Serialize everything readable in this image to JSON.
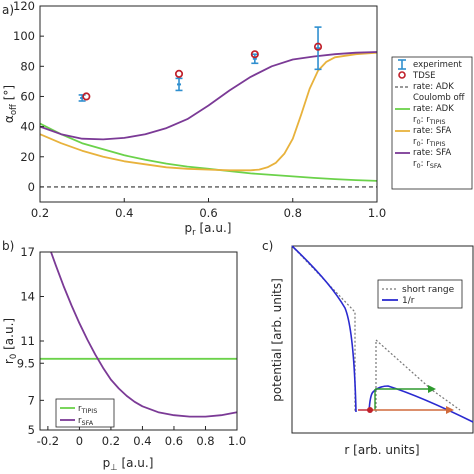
{
  "panel_labels": {
    "a": "a)",
    "b": "b)",
    "c": "c)"
  },
  "colors": {
    "experiment": "#2f8fcf",
    "tdse": "#c0202a",
    "adk": "#6bd24a",
    "sfa": "#e8b23c",
    "rsfa": "#7b3a96",
    "dashed": "#333333",
    "short_range": "#777777",
    "one_over_r": "#2a2ad0",
    "orange_arrow": "#d06a3c",
    "green_arrow": "#2e9a2e"
  },
  "chart_data": [
    {
      "id": "a",
      "type": "line",
      "xlabel": "p",
      "xlabel_sub": "r",
      "xlabel_unit": " [a.u.]",
      "ylabel": "α",
      "ylabel_sub": "off",
      "ylabel_unit": " [°]",
      "xlim": [
        0.2,
        1.0
      ],
      "ylim": [
        -10,
        120
      ],
      "xticks": [
        "0.2",
        "0.4",
        "0.6",
        "0.8",
        "1.0"
      ],
      "xtick_values": [
        0.2,
        0.4,
        0.6,
        0.8,
        1.0
      ],
      "yticks": [
        "0",
        "20",
        "40",
        "60",
        "80",
        "100",
        "120"
      ],
      "ytick_values": [
        0,
        20,
        40,
        60,
        80,
        100,
        120
      ],
      "grid": false,
      "legend_position": "right-outside",
      "legend": [
        {
          "kind": "errorbar",
          "color": "experiment",
          "text": "experiment"
        },
        {
          "kind": "circle",
          "color": "tdse",
          "text": "TDSE"
        },
        {
          "kind": "dashed",
          "color": "dashed",
          "text": "rate: ADK",
          "text2": "Coulomb off"
        },
        {
          "kind": "line",
          "color": "adk",
          "text": "rate: ADK",
          "text2": "r",
          "text2_sub": "0",
          "text2_rest": ": r",
          "text2_sub2": "TIPIS"
        },
        {
          "kind": "line",
          "color": "sfa",
          "text": "rate: SFA",
          "text2": "r",
          "text2_sub": "0",
          "text2_rest": ": r",
          "text2_sub2": "TIPIS"
        },
        {
          "kind": "line",
          "color": "rsfa",
          "text": "rate: SFA",
          "text2": "r",
          "text2_sub": "0",
          "text2_rest": ": r",
          "text2_sub2": "SFA"
        }
      ],
      "experiment": [
        {
          "x": 0.3,
          "y": 59,
          "err": 2
        },
        {
          "x": 0.53,
          "y": 68,
          "err": 4
        },
        {
          "x": 0.71,
          "y": 85,
          "err": 3
        },
        {
          "x": 0.86,
          "y": 92,
          "err": 14
        }
      ],
      "tdse": [
        {
          "x": 0.31,
          "y": 60
        },
        {
          "x": 0.53,
          "y": 75
        },
        {
          "x": 0.71,
          "y": 88
        },
        {
          "x": 0.86,
          "y": 93
        }
      ],
      "series": [
        {
          "name": "rate: ADK Coulomb off",
          "color": "dashed",
          "dash": true,
          "x": [
            0.2,
            1.0
          ],
          "y": [
            0,
            0
          ]
        },
        {
          "name": "rate: ADK r0: rTIPIS",
          "color": "adk",
          "x": [
            0.2,
            0.25,
            0.3,
            0.35,
            0.4,
            0.45,
            0.5,
            0.55,
            0.6,
            0.65,
            0.7,
            0.75,
            0.8,
            0.85,
            0.9,
            0.95,
            1.0
          ],
          "y": [
            42,
            35,
            29,
            25,
            21,
            18,
            15.5,
            13.5,
            12,
            10.5,
            9,
            8,
            7,
            6,
            5.2,
            4.5,
            4
          ]
        },
        {
          "name": "rate: SFA r0: rTIPIS",
          "color": "sfa",
          "x": [
            0.2,
            0.25,
            0.3,
            0.35,
            0.4,
            0.45,
            0.5,
            0.55,
            0.6,
            0.65,
            0.7,
            0.72,
            0.74,
            0.76,
            0.78,
            0.8,
            0.82,
            0.84,
            0.86,
            0.88,
            0.9,
            0.95,
            1.0
          ],
          "y": [
            35,
            29,
            24,
            20,
            17,
            15,
            13,
            12,
            11.5,
            11,
            11,
            11.5,
            13,
            16,
            22,
            32,
            48,
            65,
            77,
            83,
            86,
            88,
            89
          ]
        },
        {
          "name": "rate: SFA r0: rSFA",
          "color": "rsfa",
          "x": [
            0.2,
            0.25,
            0.3,
            0.35,
            0.4,
            0.45,
            0.5,
            0.55,
            0.6,
            0.65,
            0.7,
            0.75,
            0.8,
            0.85,
            0.9,
            0.95,
            1.0
          ],
          "y": [
            40,
            35,
            32,
            31.5,
            32.5,
            35,
            39,
            45,
            54,
            64,
            73,
            80,
            84.5,
            86.5,
            88,
            89,
            89.5
          ]
        }
      ]
    },
    {
      "id": "b",
      "type": "line",
      "xlabel": "p",
      "xlabel_sub": "⊥",
      "xlabel_unit": " [a.u.]",
      "ylabel": "r",
      "ylabel_sub": "0",
      "ylabel_unit": " [a.u.]",
      "xlim": [
        -0.25,
        1.0
      ],
      "ylim": [
        5,
        17
      ],
      "xticks": [
        "-0.2",
        "0",
        "0.2",
        "0.4",
        "0.6",
        "0.8",
        "1.0"
      ],
      "xtick_values": [
        -0.2,
        0,
        0.2,
        0.4,
        0.6,
        0.8,
        1.0
      ],
      "yticks": [
        "5",
        "7",
        "9.5",
        "11",
        "14",
        "17"
      ],
      "ytick_values": [
        5,
        7,
        9.5,
        11,
        14,
        17
      ],
      "grid": false,
      "legend_position": "bottom-left",
      "legend": [
        {
          "color": "adk",
          "text": "r",
          "sub": "TIPIS"
        },
        {
          "color": "rsfa",
          "text": "r",
          "sub": "SFA"
        }
      ],
      "series": [
        {
          "name": "rTIPIS",
          "color": "adk",
          "x": [
            -0.25,
            1.0
          ],
          "y": [
            9.8,
            9.8
          ]
        },
        {
          "name": "rSFA",
          "color": "rsfa",
          "x": [
            -0.18,
            -0.15,
            -0.1,
            -0.05,
            0.0,
            0.05,
            0.1,
            0.15,
            0.2,
            0.25,
            0.3,
            0.35,
            0.4,
            0.5,
            0.6,
            0.7,
            0.8,
            0.9,
            1.0
          ],
          "y": [
            17,
            16.1,
            14.7,
            13.4,
            12.2,
            11.1,
            10.1,
            9.2,
            8.4,
            7.8,
            7.3,
            6.9,
            6.6,
            6.2,
            6.0,
            5.9,
            5.9,
            6.0,
            6.2
          ]
        }
      ]
    },
    {
      "id": "c",
      "type": "line",
      "xlabel": "r [arb. units]",
      "ylabel": "potential [arb. units]",
      "grid": false,
      "legend_position": "top-right",
      "legend": [
        {
          "kind": "dotted",
          "color": "short_range",
          "text": "short range"
        },
        {
          "kind": "line",
          "color": "one_over_r",
          "text": "1/r"
        }
      ]
    }
  ]
}
